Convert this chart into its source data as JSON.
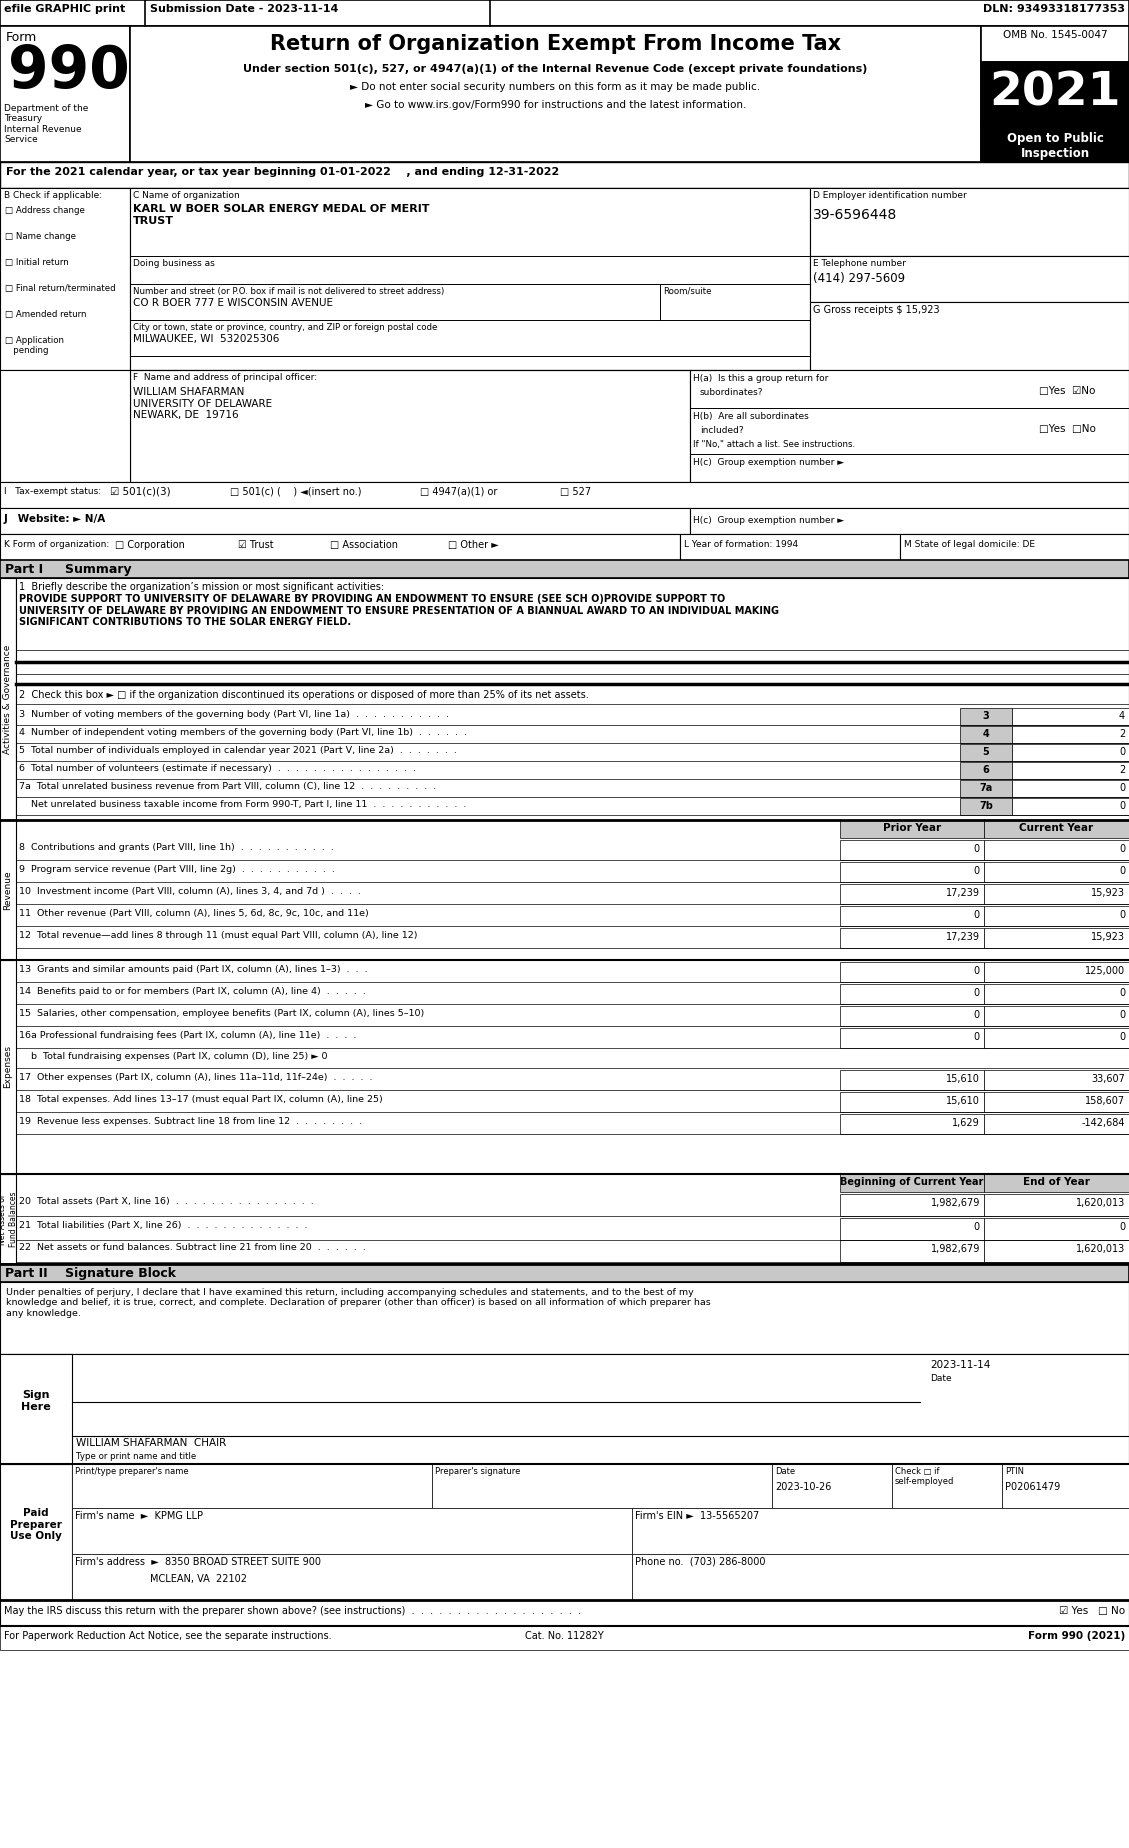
{
  "header_bar": {
    "efile_text": "efile GRAPHIC print",
    "submission_text": "Submission Date - 2023-11-14",
    "dln_text": "DLN: 93493318177353"
  },
  "form_title": "Return of Organization Exempt From Income Tax",
  "form_subtitle1": "Under section 501(c), 527, or 4947(a)(1) of the Internal Revenue Code (except private foundations)",
  "form_subtitle2": "► Do not enter social security numbers on this form as it may be made public.",
  "form_subtitle3": "► Go to www.irs.gov/Form990 for instructions and the latest information.",
  "form_number": "990",
  "form_label": "Form",
  "omb_text": "OMB No. 1545-0047",
  "year_text": "2021",
  "open_text": "Open to Public\nInspection",
  "dept_text": "Department of the\nTreasury\nInternal Revenue\nService",
  "line_a": "For the 2021 calendar year, or tax year beginning 01-01-2022    , and ending 12-31-2022",
  "org_name_label": "C Name of organization",
  "org_name": "KARL W BOER SOLAR ENERGY MEDAL OF MERIT\nTRUST",
  "doing_business": "Doing business as",
  "address_label": "Number and street (or P.O. box if mail is not delivered to street address)",
  "address": "CO R BOER 777 E WISCONSIN AVENUE",
  "room_label": "Room/suite",
  "city_label": "City or town, state or province, country, and ZIP or foreign postal code",
  "city": "MILWAUKEE, WI  532025306",
  "ein_label": "D Employer identification number",
  "ein": "39-6596448",
  "phone_label": "E Telephone number",
  "phone": "(414) 297-5609",
  "gross_receipts": "G Gross receipts $ 15,923",
  "principal_label": "F  Name and address of principal officer:",
  "principal_name": "WILLIAM SHAFARMAN\nUNIVERSITY OF DELAWARE\nNEWARK, DE  19716",
  "ha_label": "H(a)  Is this a group return for",
  "ha_sub": "subordinates?",
  "hb_label": "H(b)  Are all subordinates",
  "hb_sub": "included?",
  "hb_note": "If \"No,\" attach a list. See instructions.",
  "hc_label": "H(c)  Group exemption number ►",
  "tax_exempt_label": "I   Tax-exempt status:",
  "tax_exempt_501c3": "☑ 501(c)(3)",
  "tax_exempt_501c": "□ 501(c) (    ) ◄(insert no.)",
  "tax_exempt_4947": "□ 4947(a)(1) or",
  "tax_exempt_527": "□ 527",
  "website_label": "J   Website: ► N/A",
  "k_label": "K Form of organization:",
  "k_corp": "□ Corporation",
  "k_trust": "☑ Trust",
  "k_assoc": "□ Association",
  "k_other": "□ Other ►",
  "l_label": "L Year of formation: 1994",
  "m_label": "M State of legal domicile: DE",
  "part1_title": "Part I     Summary",
  "line1_label": "1  Briefly describe the organization’s mission or most significant activities:",
  "line1_text": "PROVIDE SUPPORT TO UNIVERSITY OF DELAWARE BY PROVIDING AN ENDOWMENT TO ENSURE (SEE SCH O)PROVIDE SUPPORT TO\nUNIVERSITY OF DELAWARE BY PROVIDING AN ENDOWMENT TO ENSURE PRESENTATION OF A BIANNUAL AWARD TO AN INDIVIDUAL MAKING\nSIGNIFICANT CONTRIBUTIONS TO THE SOLAR ENERGY FIELD.",
  "line2_text": "2  Check this box ► □ if the organization discontinued its operations or disposed of more than 25% of its net assets.",
  "line3_text": "3  Number of voting members of the governing body (Part VI, line 1a)  .  .  .  .  .  .  .  .  .  .  .",
  "line3_num": "3",
  "line3_val": "4",
  "line4_text": "4  Number of independent voting members of the governing body (Part VI, line 1b)  .  .  .  .  .  .",
  "line4_num": "4",
  "line4_val": "2",
  "line5_text": "5  Total number of individuals employed in calendar year 2021 (Part V, line 2a)  .  .  .  .  .  .  .",
  "line5_num": "5",
  "line5_val": "0",
  "line6_text": "6  Total number of volunteers (estimate if necessary)  .  .  .  .  .  .  .  .  .  .  .  .  .  .  .  .",
  "line6_num": "6",
  "line6_val": "2",
  "line7a_text": "7a  Total unrelated business revenue from Part VIII, column (C), line 12  .  .  .  .  .  .  .  .  .",
  "line7a_num": "7a",
  "line7a_val": "0",
  "line7b_text": "    Net unrelated business taxable income from Form 990-T, Part I, line 11  .  .  .  .  .  .  .  .  .  .  .",
  "line7b_num": "7b",
  "line7b_val": "0",
  "prior_year_label": "Prior Year",
  "current_year_label": "Current Year",
  "line8_text": "8  Contributions and grants (Part VIII, line 1h)  .  .  .  .  .  .  .  .  .  .  .",
  "line8_prior": "0",
  "line8_current": "0",
  "line9_text": "9  Program service revenue (Part VIII, line 2g)  .  .  .  .  .  .  .  .  .  .  .",
  "line9_prior": "0",
  "line9_current": "0",
  "line10_text": "10  Investment income (Part VIII, column (A), lines 3, 4, and 7d )  .  .  .  .",
  "line10_prior": "17,239",
  "line10_current": "15,923",
  "line11_text": "11  Other revenue (Part VIII, column (A), lines 5, 6d, 8c, 9c, 10c, and 11e)",
  "line11_prior": "0",
  "line11_current": "0",
  "line12_text": "12  Total revenue—add lines 8 through 11 (must equal Part VIII, column (A), line 12)",
  "line12_prior": "17,239",
  "line12_current": "15,923",
  "line13_text": "13  Grants and similar amounts paid (Part IX, column (A), lines 1–3)  .  .  .",
  "line13_prior": "0",
  "line13_current": "125,000",
  "line14_text": "14  Benefits paid to or for members (Part IX, column (A), line 4)  .  .  .  .  .",
  "line14_prior": "0",
  "line14_current": "0",
  "line15_text": "15  Salaries, other compensation, employee benefits (Part IX, column (A), lines 5–10)",
  "line15_prior": "0",
  "line15_current": "0",
  "line16a_text": "16a Professional fundraising fees (Part IX, column (A), line 11e)  .  .  .  .",
  "line16a_prior": "0",
  "line16a_current": "0",
  "line16b_text": "    b  Total fundraising expenses (Part IX, column (D), line 25) ► 0",
  "line17_text": "17  Other expenses (Part IX, column (A), lines 11a–11d, 11f–24e)  .  .  .  .  .",
  "line17_prior": "15,610",
  "line17_current": "33,607",
  "line18_text": "18  Total expenses. Add lines 13–17 (must equal Part IX, column (A), line 25)",
  "line18_prior": "15,610",
  "line18_current": "158,607",
  "line19_text": "19  Revenue less expenses. Subtract line 18 from line 12  .  .  .  .  .  .  .  .",
  "line19_prior": "1,629",
  "line19_current": "-142,684",
  "beg_year_label": "Beginning of Current Year",
  "end_year_label": "End of Year",
  "line20_text": "20  Total assets (Part X, line 16)  .  .  .  .  .  .  .  .  .  .  .  .  .  .  .  .",
  "line20_beg": "1,982,679",
  "line20_end": "1,620,013",
  "line21_text": "21  Total liabilities (Part X, line 26)  .  .  .  .  .  .  .  .  .  .  .  .  .  .",
  "line21_beg": "0",
  "line21_end": "0",
  "line22_text": "22  Net assets or fund balances. Subtract line 21 from line 20  .  .  .  .  .  .",
  "line22_beg": "1,982,679",
  "line22_end": "1,620,013",
  "part2_title": "Part II    Signature Block",
  "sig_declaration": "Under penalties of perjury, I declare that I have examined this return, including accompanying schedules and statements, and to the best of my\nknowledge and belief, it is true, correct, and complete. Declaration of preparer (other than officer) is based on all information of which preparer has\nany knowledge.",
  "sign_here": "Sign\nHere",
  "sig_date": "2023-11-14",
  "sig_date_label": "Date",
  "sig_officer_name": "WILLIAM SHAFARMAN  CHAIR",
  "sig_officer_label": "Type or print name and title",
  "preparer_name_label": "Print/type preparer's name",
  "preparer_sig_label": "Preparer's signature",
  "date_label": "Date",
  "check_label": "Check □ if\nself-employed",
  "ptin_label": "PTIN",
  "ptin_val": "P02061479",
  "firm_name_label": "Firm's name  ►",
  "firm_name": "KPMG LLP",
  "firm_ein_label": "Firm's EIN ►",
  "firm_ein": "13-5565207",
  "preparer_date": "2023-10-26",
  "firm_address_label": "Firm's address  ►",
  "firm_address": "8350 BROAD STREET SUITE 900",
  "firm_city": "MCLEAN, VA  22102",
  "phone_no_label": "Phone no.",
  "phone_no": "(703) 286-8000",
  "may_irs_label": "May the IRS discuss this return with the preparer shown above? (see instructions)  .  .  .  .  .  .  .  .  .  .  .  .  .  .  .  .  .  .  .",
  "may_irs_answer": "☑ Yes   □ No",
  "paperwork_text": "For Paperwork Reduction Act Notice, see the separate instructions.",
  "cat_no": "Cat. No. 11282Y",
  "form_990_label": "Form 990 (2021)"
}
